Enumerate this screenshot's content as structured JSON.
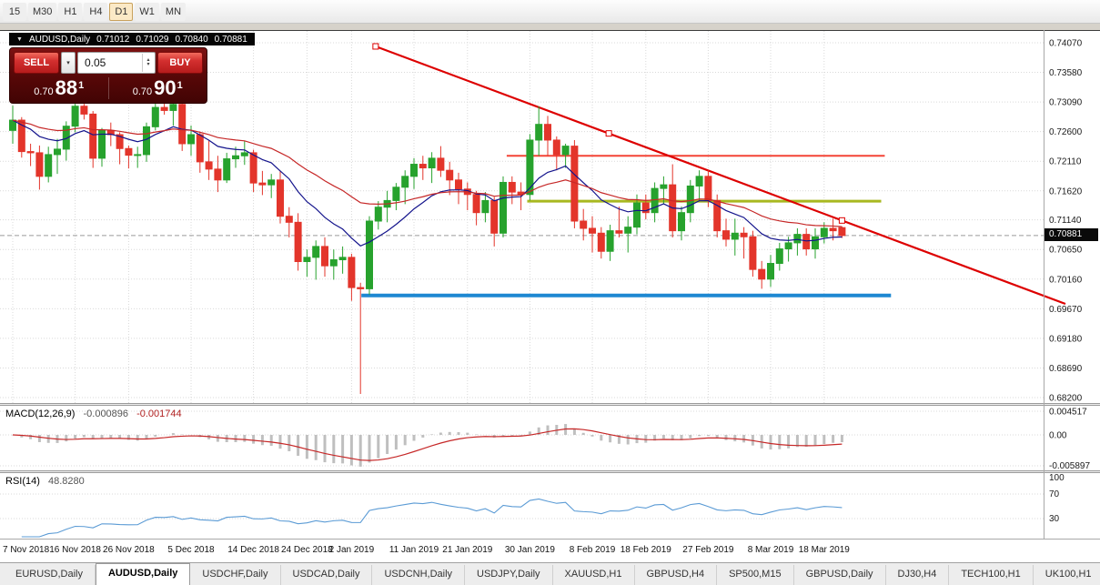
{
  "toolbar": {
    "timeframes": [
      {
        "label": "15",
        "active": false
      },
      {
        "label": "M30",
        "active": false
      },
      {
        "label": "H1",
        "active": false
      },
      {
        "label": "H4",
        "active": false
      },
      {
        "label": "D1",
        "active": true
      },
      {
        "label": "W1",
        "active": false
      },
      {
        "label": "MN",
        "active": false
      }
    ]
  },
  "chart_header": {
    "symbol": "AUDUSD,Daily",
    "open": "0.71012",
    "high": "0.71029",
    "low": "0.70840",
    "close": "0.70881"
  },
  "trade_panel": {
    "sell_label": "SELL",
    "buy_label": "BUY",
    "volume": "0.05",
    "bid": {
      "prefix": "0.70",
      "pips": "88",
      "point": "1"
    },
    "ask": {
      "prefix": "0.70",
      "pips": "90",
      "point": "1"
    }
  },
  "price_axis": {
    "current_price": "0.70881"
  },
  "macd_panel": {
    "title": "MACD(12,26,9)",
    "main_value": "-0.000896",
    "signal_value": "-0.001744"
  },
  "rsi_panel": {
    "title": "RSI(14)",
    "value": "48.8280"
  },
  "tabs": [
    {
      "label": "EURUSD,Daily",
      "active": false
    },
    {
      "label": "AUDUSD,Daily",
      "active": true
    },
    {
      "label": "USDCHF,Daily",
      "active": false
    },
    {
      "label": "USDCAD,Daily",
      "active": false
    },
    {
      "label": "USDCNH,Daily",
      "active": false
    },
    {
      "label": "USDJPY,Daily",
      "active": false
    },
    {
      "label": "XAUUSD,H1",
      "active": false
    },
    {
      "label": "GBPUSD,H4",
      "active": false
    },
    {
      "label": "SP500,M15",
      "active": false
    },
    {
      "label": "GBPUSD,Daily",
      "active": false
    },
    {
      "label": "DJ30,H4",
      "active": false
    },
    {
      "label": "TECH100,H1",
      "active": false
    },
    {
      "label": "UK100,H1",
      "active": false
    }
  ],
  "chart_data": {
    "type": "candlestick",
    "symbol": "AUDUSD",
    "timeframe": "Daily",
    "style": {
      "up_color": "#27A22D",
      "down_color": "#E3352B",
      "grid_color": "#D9D9D9"
    },
    "y_axis": {
      "price_max": 0.7407,
      "price_min": 0.682,
      "labels": [
        "0.74070",
        "0.73580",
        "0.73090",
        "0.72600",
        "0.72110",
        "0.71620",
        "0.71140",
        "0.70650",
        "0.70160",
        "0.69670",
        "0.69180",
        "0.68690",
        "0.68200"
      ]
    },
    "x_ticks": [
      {
        "i": 0,
        "label": "7 Nov 2018"
      },
      {
        "i": 7,
        "label": "16 Nov 2018"
      },
      {
        "i": 13,
        "label": "26 Nov 2018"
      },
      {
        "i": 20,
        "label": "5 Dec 2018"
      },
      {
        "i": 27,
        "label": "14 Dec 2018"
      },
      {
        "i": 33,
        "label": "24 Dec 2018"
      },
      {
        "i": 38,
        "label": "2 Jan 2019"
      },
      {
        "i": 45,
        "label": "11 Jan 2019"
      },
      {
        "i": 51,
        "label": "21 Jan 2019"
      },
      {
        "i": 58,
        "label": "30 Jan 2019"
      },
      {
        "i": 65,
        "label": "8 Feb 2019"
      },
      {
        "i": 71,
        "label": "18 Feb 2019"
      },
      {
        "i": 78,
        "label": "27 Feb 2019"
      },
      {
        "i": 85,
        "label": "8 Mar 2019"
      },
      {
        "i": 91,
        "label": "18 Mar 2019"
      }
    ],
    "candles": [
      [
        0.7262,
        0.7303,
        0.724,
        0.7279
      ],
      [
        0.7279,
        0.7284,
        0.7217,
        0.7227
      ],
      [
        0.7227,
        0.724,
        0.7203,
        0.7225
      ],
      [
        0.7225,
        0.7237,
        0.7164,
        0.7186
      ],
      [
        0.7186,
        0.7235,
        0.7176,
        0.7222
      ],
      [
        0.7222,
        0.7248,
        0.719,
        0.7231
      ],
      [
        0.7231,
        0.7277,
        0.7212,
        0.7269
      ],
      [
        0.7269,
        0.731,
        0.7259,
        0.7302
      ],
      [
        0.7302,
        0.7306,
        0.728,
        0.7289
      ],
      [
        0.7289,
        0.7294,
        0.72,
        0.7216
      ],
      [
        0.7216,
        0.7266,
        0.7202,
        0.7262
      ],
      [
        0.7262,
        0.7275,
        0.7236,
        0.7255
      ],
      [
        0.7255,
        0.7259,
        0.7206,
        0.7232
      ],
      [
        0.7232,
        0.7237,
        0.7199,
        0.7221
      ],
      [
        0.7221,
        0.7235,
        0.72,
        0.7222
      ],
      [
        0.7222,
        0.7275,
        0.721,
        0.7268
      ],
      [
        0.7268,
        0.731,
        0.7262,
        0.73
      ],
      [
        0.73,
        0.7312,
        0.7288,
        0.7295
      ],
      [
        0.7295,
        0.731,
        0.727,
        0.7305
      ],
      [
        0.7305,
        0.7308,
        0.7228,
        0.724
      ],
      [
        0.724,
        0.727,
        0.722,
        0.7255
      ],
      [
        0.7255,
        0.726,
        0.7192,
        0.721
      ],
      [
        0.721,
        0.7245,
        0.718,
        0.7198
      ],
      [
        0.7198,
        0.722,
        0.716,
        0.718
      ],
      [
        0.718,
        0.7225,
        0.7175,
        0.7215
      ],
      [
        0.7215,
        0.7235,
        0.72,
        0.722
      ],
      [
        0.722,
        0.7245,
        0.7205,
        0.7225
      ],
      [
        0.7225,
        0.723,
        0.716,
        0.7175
      ],
      [
        0.7175,
        0.7195,
        0.7155,
        0.7172
      ],
      [
        0.7172,
        0.719,
        0.715,
        0.718
      ],
      [
        0.718,
        0.7195,
        0.7108,
        0.712
      ],
      [
        0.712,
        0.7135,
        0.7085,
        0.711
      ],
      [
        0.711,
        0.7125,
        0.703,
        0.7045
      ],
      [
        0.7045,
        0.7065,
        0.702,
        0.7052
      ],
      [
        0.7052,
        0.708,
        0.7015,
        0.707
      ],
      [
        0.707,
        0.7085,
        0.702,
        0.7038
      ],
      [
        0.7038,
        0.7065,
        0.7015,
        0.7048
      ],
      [
        0.7048,
        0.707,
        0.7025,
        0.7052
      ],
      [
        0.7052,
        0.7058,
        0.698,
        0.7002
      ],
      [
        0.7002,
        0.701,
        0.6826,
        0.7
      ],
      [
        0.7,
        0.712,
        0.699,
        0.7112
      ],
      [
        0.7112,
        0.7145,
        0.7098,
        0.7135
      ],
      [
        0.7135,
        0.7162,
        0.711,
        0.7146
      ],
      [
        0.7146,
        0.7175,
        0.713,
        0.7168
      ],
      [
        0.7168,
        0.7196,
        0.714,
        0.7186
      ],
      [
        0.7186,
        0.7216,
        0.7165,
        0.7206
      ],
      [
        0.7206,
        0.722,
        0.718,
        0.72
      ],
      [
        0.72,
        0.7226,
        0.7175,
        0.7216
      ],
      [
        0.7216,
        0.7236,
        0.7185,
        0.7196
      ],
      [
        0.7196,
        0.721,
        0.7155,
        0.718
      ],
      [
        0.718,
        0.7192,
        0.714,
        0.7165
      ],
      [
        0.7165,
        0.7176,
        0.713,
        0.7156
      ],
      [
        0.7156,
        0.7162,
        0.7105,
        0.7126
      ],
      [
        0.7126,
        0.716,
        0.711,
        0.7146
      ],
      [
        0.7146,
        0.7152,
        0.707,
        0.7092
      ],
      [
        0.7092,
        0.7186,
        0.7085,
        0.7176
      ],
      [
        0.7176,
        0.7186,
        0.714,
        0.716
      ],
      [
        0.716,
        0.7176,
        0.713,
        0.7156
      ],
      [
        0.7156,
        0.7256,
        0.7146,
        0.7246
      ],
      [
        0.7246,
        0.7302,
        0.722,
        0.7272
      ],
      [
        0.7272,
        0.7286,
        0.722,
        0.7246
      ],
      [
        0.7246,
        0.7252,
        0.7196,
        0.7222
      ],
      [
        0.7222,
        0.724,
        0.72,
        0.7236
      ],
      [
        0.7236,
        0.7246,
        0.71,
        0.7112
      ],
      [
        0.7112,
        0.7132,
        0.708,
        0.71
      ],
      [
        0.71,
        0.712,
        0.706,
        0.7092
      ],
      [
        0.7092,
        0.7102,
        0.705,
        0.7062
      ],
      [
        0.7062,
        0.7106,
        0.7046,
        0.7096
      ],
      [
        0.7096,
        0.7136,
        0.7085,
        0.7092
      ],
      [
        0.7092,
        0.712,
        0.706,
        0.7102
      ],
      [
        0.7102,
        0.7156,
        0.709,
        0.7142
      ],
      [
        0.7142,
        0.7156,
        0.7115,
        0.7126
      ],
      [
        0.7126,
        0.7176,
        0.711,
        0.7166
      ],
      [
        0.7166,
        0.7186,
        0.714,
        0.7172
      ],
      [
        0.7172,
        0.7206,
        0.7085,
        0.7096
      ],
      [
        0.7096,
        0.7136,
        0.708,
        0.7126
      ],
      [
        0.7126,
        0.718,
        0.711,
        0.717
      ],
      [
        0.717,
        0.7196,
        0.7145,
        0.7186
      ],
      [
        0.7186,
        0.7196,
        0.7135,
        0.7146
      ],
      [
        0.7146,
        0.7156,
        0.7085,
        0.7096
      ],
      [
        0.7096,
        0.7116,
        0.707,
        0.7082
      ],
      [
        0.7082,
        0.7116,
        0.7055,
        0.7092
      ],
      [
        0.7092,
        0.7102,
        0.705,
        0.7086
      ],
      [
        0.7086,
        0.7096,
        0.702,
        0.7032
      ],
      [
        0.7032,
        0.7046,
        0.7,
        0.7016
      ],
      [
        0.7016,
        0.7056,
        0.7003,
        0.7042
      ],
      [
        0.7042,
        0.7076,
        0.703,
        0.7066
      ],
      [
        0.7066,
        0.7086,
        0.7045,
        0.7076
      ],
      [
        0.7076,
        0.71,
        0.7055,
        0.709
      ],
      [
        0.709,
        0.71,
        0.7055,
        0.7066
      ],
      [
        0.7066,
        0.71,
        0.705,
        0.7086
      ],
      [
        0.7086,
        0.711,
        0.7075,
        0.71
      ],
      [
        0.71,
        0.7116,
        0.708,
        0.7096
      ],
      [
        0.71012,
        0.71029,
        0.7084,
        0.70881
      ]
    ],
    "moving_averages": [
      {
        "period": 12,
        "color": "#14148C"
      },
      {
        "period": 30,
        "color": "#C62828"
      }
    ],
    "bid_line_price": 0.70881,
    "objects": {
      "trendline": {
        "i1": 40.7,
        "p1": 0.7401,
        "i2": 93.0,
        "p2": 0.7113,
        "ray": true,
        "color": "#DD0000",
        "width": 2.2,
        "selected": true
      },
      "hlines": [
        {
          "price": 0.722,
          "i1": 55.4,
          "i2": 97.8,
          "color": "#F44336",
          "width": 2
        },
        {
          "price": 0.7145,
          "i1": 57.7,
          "i2": 97.4,
          "color": "#A8B820",
          "width": 3
        },
        {
          "price": 0.6989,
          "i1": 39.1,
          "i2": 98.5,
          "color": "#1E88D2",
          "width": 4
        }
      ]
    },
    "macd": {
      "fast": 12,
      "slow": 26,
      "signal": 9,
      "histogram_color": "#BFBFBF",
      "signal_color": "#C62828",
      "axis_labels": [
        "0.004517",
        "0.00",
        "-0.005897"
      ]
    },
    "rsi": {
      "period": 14,
      "line_color": "#5B9BD5",
      "levels": [
        70,
        30
      ],
      "axis_labels": [
        "100",
        "70",
        "30"
      ]
    }
  }
}
